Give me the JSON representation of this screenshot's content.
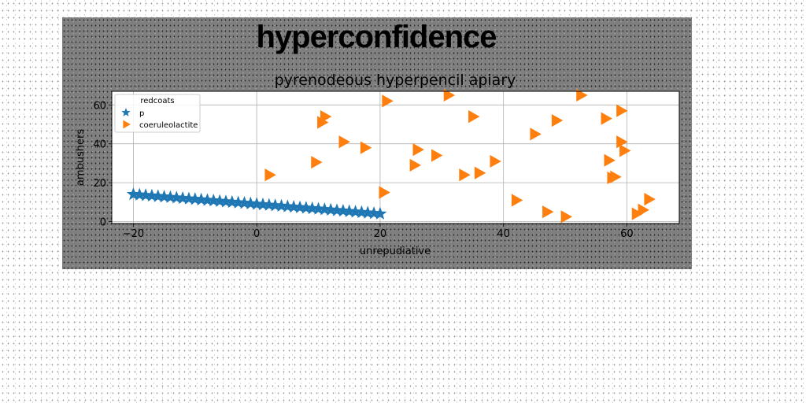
{
  "chart_data": {
    "type": "scatter",
    "suptitle": "hyperconfidence",
    "title": "pyrenodeous hyperpencil apiary",
    "xlabel": "unrepudiative",
    "ylabel": "ambushers",
    "xlim": [
      -23.5,
      68.5
    ],
    "ylim": [
      -1,
      67
    ],
    "xticks": [
      -20,
      0,
      20,
      40,
      60
    ],
    "yticks": [
      0,
      20,
      40,
      60
    ],
    "grid": true,
    "legend": {
      "title": "redcoats",
      "placement": "top-left"
    },
    "colors": {
      "p": "#1f77b4",
      "coeruleolactite": "#ff7f0e"
    },
    "series": [
      {
        "name": "p",
        "marker": "star",
        "x": [
          -20,
          -19,
          -18,
          -17,
          -16,
          -15,
          -14,
          -13,
          -12,
          -11,
          -10,
          -9,
          -8,
          -7,
          -6,
          -5,
          -4,
          -3,
          -2,
          -1,
          0,
          1,
          2,
          3,
          4,
          5,
          6,
          7,
          8,
          9,
          10,
          11,
          12,
          13,
          14,
          15,
          16,
          17,
          18,
          19,
          20
        ],
        "y": [
          14,
          13.75,
          13.5,
          13.25,
          13,
          12.75,
          12.5,
          12.25,
          12,
          11.75,
          11.5,
          11.25,
          11,
          10.75,
          10.5,
          10.25,
          10,
          9.75,
          9.5,
          9.25,
          9,
          8.75,
          8.5,
          8.25,
          8,
          7.75,
          7.5,
          7.25,
          7,
          6.75,
          6.5,
          6.25,
          6,
          5.75,
          5.5,
          5.25,
          5,
          4.75,
          4.5,
          4.25,
          4
        ]
      },
      {
        "name": "coeruleolactite",
        "marker": "triangle-right",
        "x": [
          2,
          9.5,
          10.5,
          11,
          14,
          17.5,
          20.5,
          21,
          25.5,
          26,
          29,
          31,
          33.5,
          35,
          36,
          38.5,
          42,
          45,
          47,
          48.5,
          50,
          52.5,
          56.5,
          57,
          57.5,
          58,
          59,
          59.5,
          59,
          61.5,
          62.5,
          63.5
        ],
        "y": [
          24,
          30.5,
          51,
          54,
          41,
          38,
          15,
          62,
          29,
          37,
          34,
          65,
          24,
          54,
          25,
          31,
          11,
          45,
          5,
          52,
          2.5,
          65,
          53,
          31.5,
          22.5,
          23,
          57,
          36.5,
          41,
          4,
          6,
          11.5
        ]
      }
    ]
  }
}
